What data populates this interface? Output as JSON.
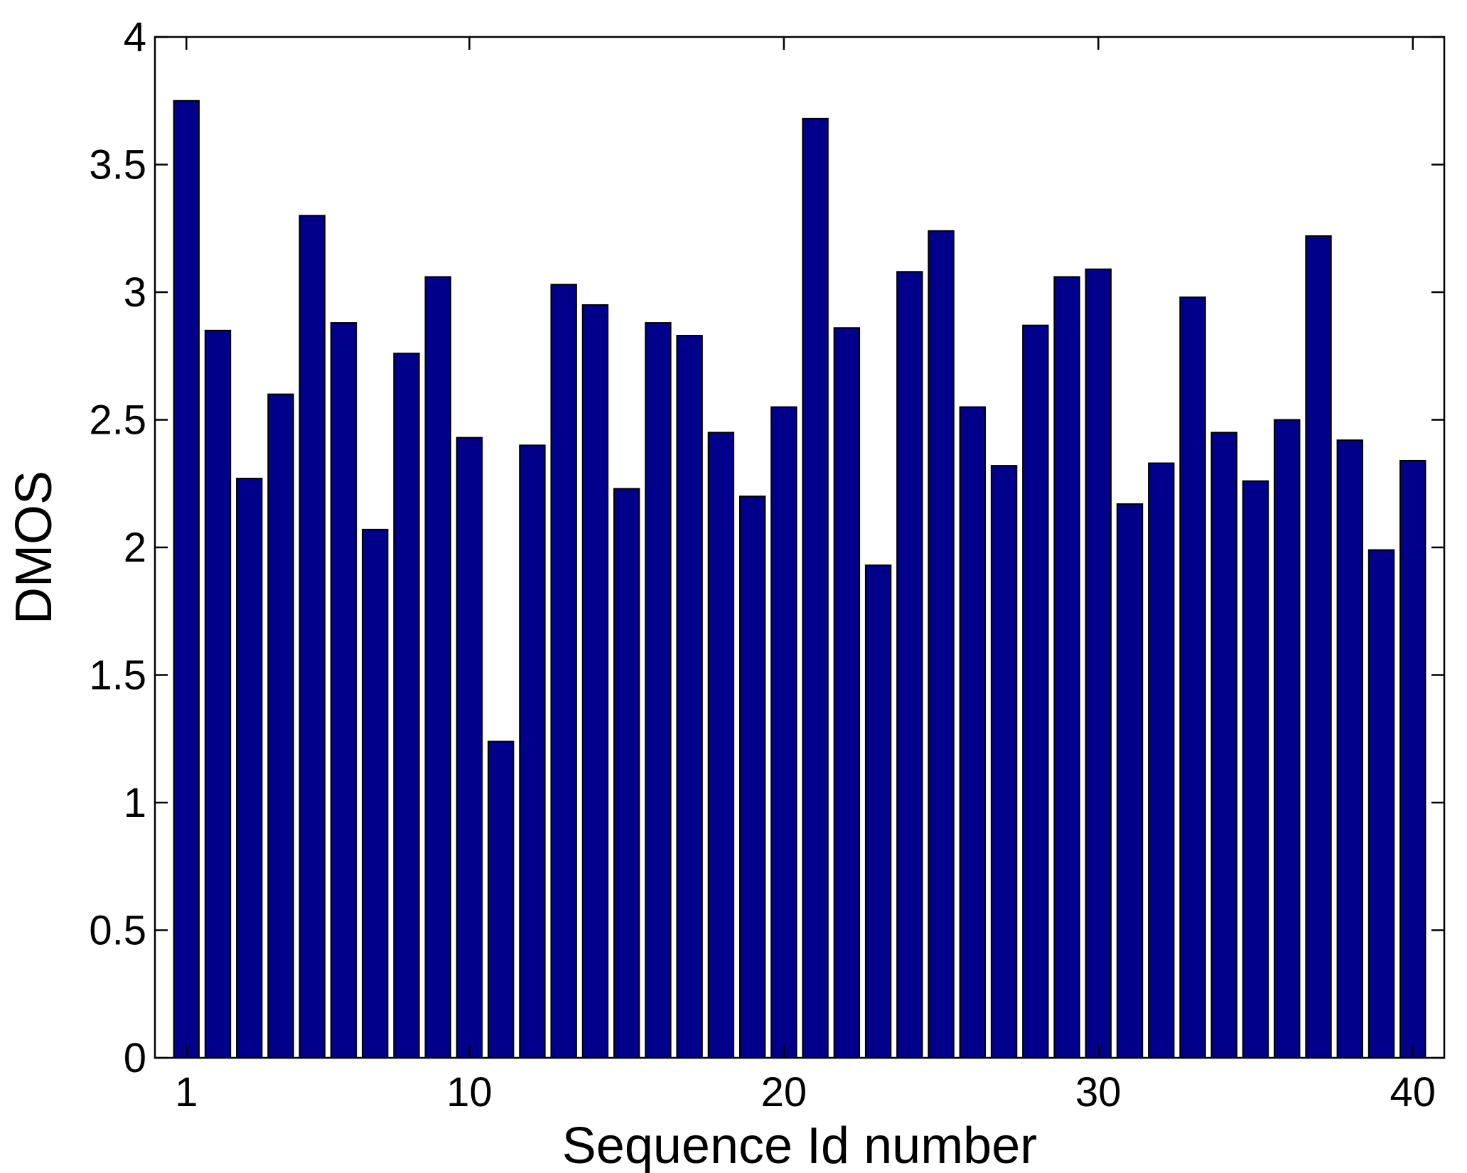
{
  "chart_data": {
    "type": "bar",
    "xlabel": "Sequence Id number",
    "ylabel": "DMOS",
    "xlim": [
      0,
      41
    ],
    "ylim": [
      0,
      4
    ],
    "xticks": [
      1,
      10,
      20,
      30,
      40
    ],
    "yticks": [
      0,
      0.5,
      1,
      1.5,
      2,
      2.5,
      3,
      3.5,
      4
    ],
    "ytick_labels": [
      "0",
      "0.5",
      "1",
      "1.5",
      "2",
      "2.5",
      "3",
      "3.5",
      "4"
    ],
    "xtick_labels": [
      "1",
      "10",
      "20",
      "30",
      "40"
    ],
    "bar_color": "#00008B",
    "grid": false,
    "categories": [
      1,
      2,
      3,
      4,
      5,
      6,
      7,
      8,
      9,
      10,
      11,
      12,
      13,
      14,
      15,
      16,
      17,
      18,
      19,
      20,
      21,
      22,
      23,
      24,
      25,
      26,
      27,
      28,
      29,
      30,
      31,
      32,
      33,
      34,
      35,
      36,
      37,
      38,
      39,
      40
    ],
    "values": [
      3.75,
      2.85,
      2.27,
      2.6,
      3.3,
      2.88,
      2.07,
      2.76,
      3.06,
      2.43,
      1.24,
      2.4,
      3.03,
      2.95,
      2.23,
      2.88,
      2.83,
      2.45,
      2.2,
      2.55,
      3.68,
      2.86,
      1.93,
      3.08,
      3.24,
      2.55,
      2.32,
      2.87,
      3.06,
      3.09,
      2.17,
      2.33,
      2.98,
      2.45,
      2.26,
      2.5,
      3.22,
      2.42,
      1.99,
      2.34
    ]
  }
}
